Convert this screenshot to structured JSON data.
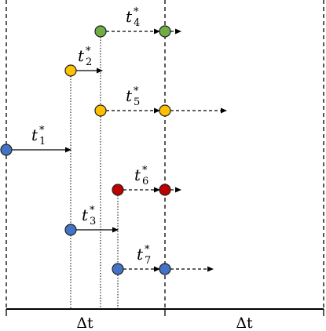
{
  "labels": [
    {
      "base": "t",
      "sub": "1",
      "sup": "*"
    },
    {
      "base": "t",
      "sub": "2",
      "sup": "*"
    },
    {
      "base": "t",
      "sub": "3",
      "sup": "*"
    },
    {
      "base": "t",
      "sub": "4",
      "sup": "*"
    },
    {
      "base": "t",
      "sub": "5",
      "sup": "*"
    },
    {
      "base": "t",
      "sub": "6",
      "sup": "*"
    },
    {
      "base": "t",
      "sub": "7",
      "sup": "*"
    }
  ],
  "axis": {
    "labels": [
      "Δt",
      "Δt"
    ]
  }
}
